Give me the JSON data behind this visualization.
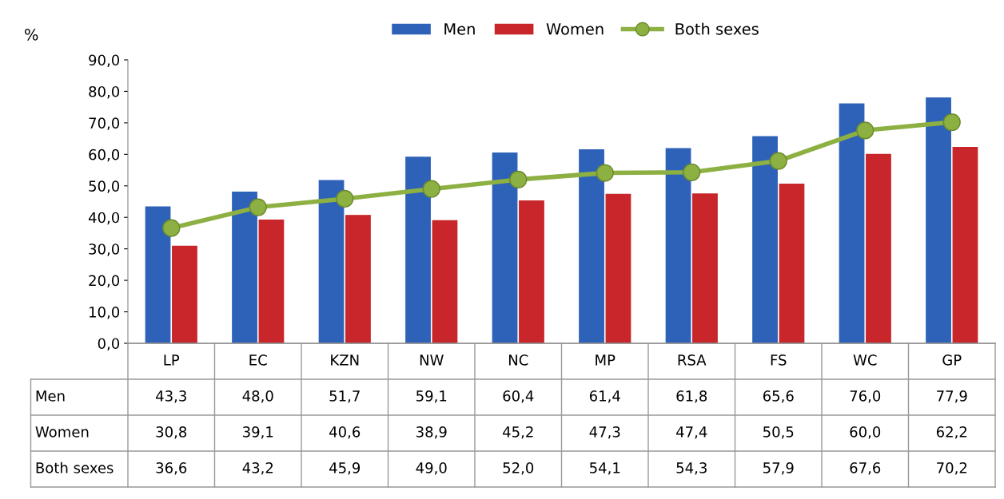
{
  "chart_data": {
    "type": "bar",
    "ylabel": "%",
    "categories": [
      "LP",
      "EC",
      "KZN",
      "NW",
      "NC",
      "MP",
      "RSA",
      "FS",
      "WC",
      "GP"
    ],
    "series": [
      {
        "name": "Men",
        "color": "#2e62b8",
        "values": [
          43.3,
          48.0,
          51.7,
          59.1,
          60.4,
          61.4,
          61.8,
          65.6,
          76.0,
          77.9
        ],
        "value_labels": [
          "43,3",
          "48,0",
          "51,7",
          "59,1",
          "60,4",
          "61,4",
          "61,8",
          "65,6",
          "76,0",
          "77,9"
        ]
      },
      {
        "name": "Women",
        "color": "#c8262b",
        "values": [
          30.8,
          39.1,
          40.6,
          38.9,
          45.2,
          47.3,
          47.4,
          50.5,
          60.0,
          62.2
        ],
        "value_labels": [
          "30,8",
          "39,1",
          "40,6",
          "38,9",
          "45,2",
          "47,3",
          "47,4",
          "50,5",
          "60,0",
          "62,2"
        ]
      },
      {
        "name": "Both sexes",
        "type": "line",
        "color": "#8db043",
        "marker": "circle",
        "values": [
          36.6,
          43.2,
          45.9,
          49.0,
          52.0,
          54.1,
          54.3,
          57.9,
          67.6,
          70.2
        ],
        "value_labels": [
          "36,6",
          "43,2",
          "45,9",
          "49,0",
          "52,0",
          "54,1",
          "54,3",
          "57,9",
          "67,6",
          "70,2"
        ]
      }
    ],
    "ylim": [
      0,
      90
    ],
    "yticks": [
      {
        "value": 0,
        "label": "0,0"
      },
      {
        "value": 10,
        "label": "10,0"
      },
      {
        "value": 20,
        "label": "20,0"
      },
      {
        "value": 30,
        "label": "30,0"
      },
      {
        "value": 40,
        "label": "40,0"
      },
      {
        "value": 50,
        "label": "50,0"
      },
      {
        "value": 60,
        "label": "60,0"
      },
      {
        "value": 70,
        "label": "70,0"
      },
      {
        "value": 80,
        "label": "80,0"
      },
      {
        "value": 90,
        "label": "90,0"
      }
    ],
    "legend": "top",
    "grid": false
  }
}
